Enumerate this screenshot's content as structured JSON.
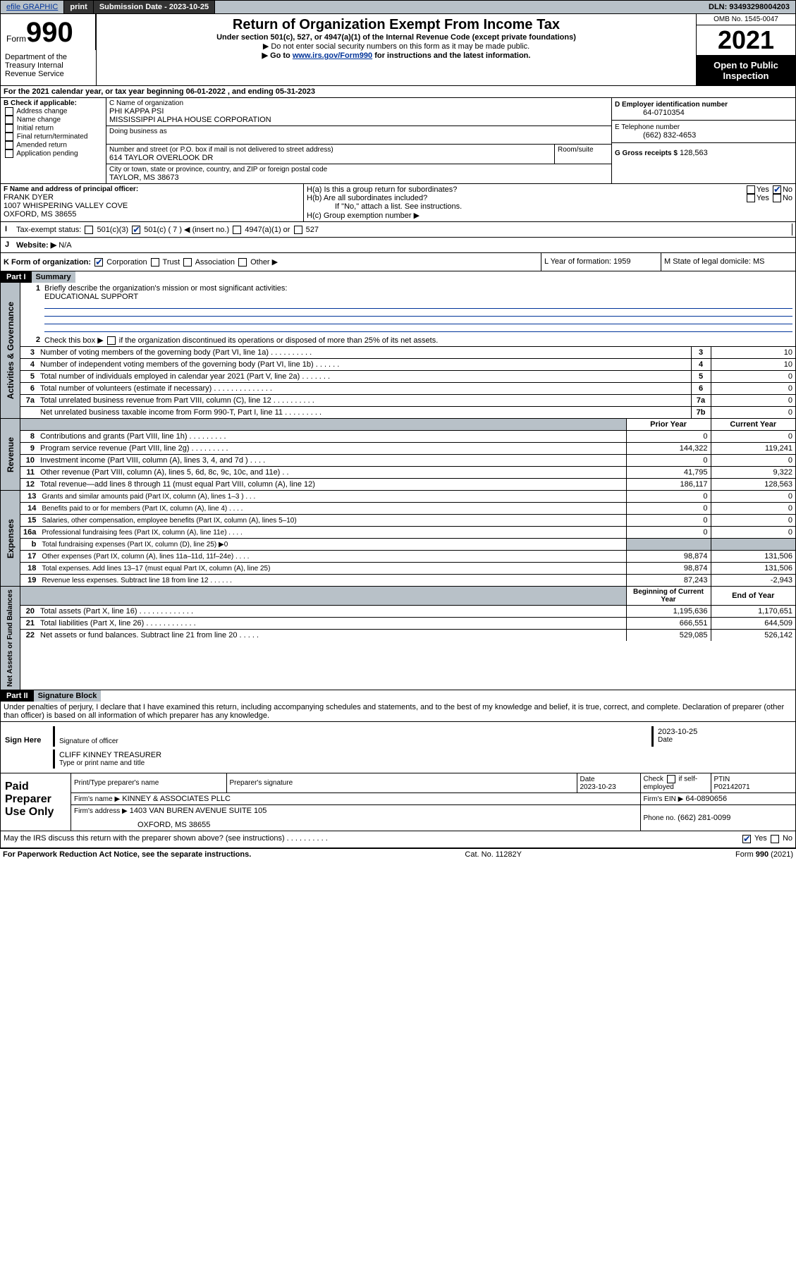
{
  "topbar": {
    "efile": "efile GRAPHIC",
    "print": "print",
    "sub_date_label": "Submission Date - 2023-10-25",
    "dln_label": "DLN: 93493298004203"
  },
  "header": {
    "form_prefix": "Form",
    "form_no": "990",
    "title": "Return of Organization Exempt From Income Tax",
    "subtitle": "Under section 501(c), 527, or 4947(a)(1) of the Internal Revenue Code (except private foundations)",
    "note1": "▶ Do not enter social security numbers on this form as it may be made public.",
    "note2_prefix": "▶ Go to ",
    "note2_link": "www.irs.gov/Form990",
    "note2_suffix": " for instructions and the latest information.",
    "omb": "OMB No. 1545-0047",
    "year": "2021",
    "open": "Open to Public Inspection",
    "dept": "Department of the Treasury Internal Revenue Service"
  },
  "sectionA": {
    "tax_year": "For the 2021 calendar year, or tax year beginning 06-01-2022   , and ending 05-31-2023",
    "b_label": "B Check if applicable:",
    "b_opts": [
      "Address change",
      "Name change",
      "Initial return",
      "Final return/terminated",
      "Amended return",
      "Application pending"
    ],
    "c_name_label": "C Name of organization",
    "c_name1": "PHI KAPPA PSI",
    "c_name2": "MISSISSIPPI ALPHA HOUSE CORPORATION",
    "dba_label": "Doing business as",
    "street_label": "Number and street (or P.O. box if mail is not delivered to street address)",
    "room_label": "Room/suite",
    "street": "614 TAYLOR OVERLOOK DR",
    "city_label": "City or town, state or province, country, and ZIP or foreign postal code",
    "city": "TAYLOR, MS  38673",
    "d_label": "D Employer identification number",
    "d_val": "64-0710354",
    "e_label": "E Telephone number",
    "e_val": "(662) 832-4653",
    "g_label": "G Gross receipts $",
    "g_val": "128,563",
    "f_label": "F  Name and address of principal officer:",
    "f_name": "FRANK DYER",
    "f_addr1": "1007 WHISPERING VALLEY COVE",
    "f_addr2": "OXFORD, MS  38655",
    "ha_label": "H(a)  Is this a group return for subordinates?",
    "hb_label": "H(b)  Are all subordinates included?",
    "h_note": "If \"No,\" attach a list. See instructions.",
    "hc_label": "H(c)  Group exemption number ▶",
    "yes": "Yes",
    "no": "No",
    "i_label": "Tax-exempt status:",
    "i_501c3": "501(c)(3)",
    "i_501c": "501(c) ( 7 ) ◀ (insert no.)",
    "i_4947": "4947(a)(1) or",
    "i_527": "527",
    "j_label": "Website: ▶",
    "j_val": "N/A",
    "k_label": "K Form of organization:",
    "k_opts": [
      "Corporation",
      "Trust",
      "Association",
      "Other ▶"
    ],
    "l_label": "L Year of formation: 1959",
    "m_label": "M State of legal domicile: MS"
  },
  "part1": {
    "header": "Part I",
    "title": "Summary",
    "q1": "Briefly describe the organization's mission or most significant activities:",
    "q1_ans": "EDUCATIONAL SUPPORT",
    "q2": "Check this box ▶      if the organization discontinued its operations or disposed of more than 25% of its net assets.",
    "lines_gov": [
      {
        "n": "3",
        "t": "Number of voting members of the governing body (Part VI, line 1a)   .    .    .    .    .    .    .    .    .    .",
        "box": "3",
        "v": "10"
      },
      {
        "n": "4",
        "t": "Number of independent voting members of the governing body (Part VI, line 1b)     .    .    .    .    .    .",
        "box": "4",
        "v": "10"
      },
      {
        "n": "5",
        "t": "Total number of individuals employed in calendar year 2021 (Part V, line 2a)    .    .    .    .    .    .    .",
        "box": "5",
        "v": "0"
      },
      {
        "n": "6",
        "t": "Total number of volunteers (estimate if necessary)   .    .    .    .    .    .    .    .    .    .    .    .    .    .",
        "box": "6",
        "v": "0"
      },
      {
        "n": "7a",
        "t": "Total unrelated business revenue from Part VIII, column (C), line 12   .    .    .    .    .    .    .    .    .    .",
        "box": "7a",
        "v": "0"
      },
      {
        "n": "",
        "t": "Net unrelated business taxable income from Form 990-T, Part I, line 11   .    .    .    .    .    .    .    .    .",
        "box": "7b",
        "v": "0"
      }
    ],
    "col_prior": "Prior Year",
    "col_curr": "Current Year",
    "b_label": "b",
    "rev": [
      {
        "n": "8",
        "t": "Contributions and grants (Part VIII, line 1h)   .    .    .    .    .    .    .    .    .",
        "p": "0",
        "c": "0"
      },
      {
        "n": "9",
        "t": "Program service revenue (Part VIII, line 2g)   .    .    .    .    .    .    .    .    .",
        "p": "144,322",
        "c": "119,241"
      },
      {
        "n": "10",
        "t": "Investment income (Part VIII, column (A), lines 3, 4, and 7d )    .    .    .    .",
        "p": "0",
        "c": "0"
      },
      {
        "n": "11",
        "t": "Other revenue (Part VIII, column (A), lines 5, 6d, 8c, 9c, 10c, and 11e)    .    .",
        "p": "41,795",
        "c": "9,322"
      },
      {
        "n": "12",
        "t": "Total revenue—add lines 8 through 11 (must equal Part VIII, column (A), line 12)",
        "p": "186,117",
        "c": "128,563"
      }
    ],
    "exp": [
      {
        "n": "13",
        "t": "Grants and similar amounts paid (Part IX, column (A), lines 1–3 )   .    .    .",
        "p": "0",
        "c": "0"
      },
      {
        "n": "14",
        "t": "Benefits paid to or for members (Part IX, column (A), line 4)   .    .    .    .",
        "p": "0",
        "c": "0"
      },
      {
        "n": "15",
        "t": "Salaries, other compensation, employee benefits (Part IX, column (A), lines 5–10)",
        "p": "0",
        "c": "0"
      },
      {
        "n": "16a",
        "t": "Professional fundraising fees (Part IX, column (A), line 11e)   .    .    .    .",
        "p": "0",
        "c": "0"
      },
      {
        "n": "b",
        "t": "Total fundraising expenses (Part IX, column (D), line 25) ▶0",
        "p": "",
        "c": "",
        "grey": true
      },
      {
        "n": "17",
        "t": "Other expenses (Part IX, column (A), lines 11a–11d, 11f–24e)   .    .    .    .",
        "p": "98,874",
        "c": "131,506"
      },
      {
        "n": "18",
        "t": "Total expenses. Add lines 13–17 (must equal Part IX, column (A), line 25)",
        "p": "98,874",
        "c": "131,506"
      },
      {
        "n": "19",
        "t": "Revenue less expenses. Subtract line 18 from line 12   .    .    .    .    .    .",
        "p": "87,243",
        "c": "-2,943"
      }
    ],
    "col_beg": "Beginning of Current Year",
    "col_end": "End of Year",
    "net": [
      {
        "n": "20",
        "t": "Total assets (Part X, line 16)   .    .    .    .    .    .    .    .    .    .    .    .    .",
        "p": "1,195,636",
        "c": "1,170,651"
      },
      {
        "n": "21",
        "t": "Total liabilities (Part X, line 26)    .    .    .    .    .    .    .    .    .    .    .    .",
        "p": "666,551",
        "c": "644,509"
      },
      {
        "n": "22",
        "t": "Net assets or fund balances. Subtract line 21 from line 20   .    .    .    .    .",
        "p": "529,085",
        "c": "526,142"
      }
    ],
    "side_gov": "Activities & Governance",
    "side_rev": "Revenue",
    "side_exp": "Expenses",
    "side_net": "Net Assets or Fund Balances"
  },
  "part2": {
    "header": "Part II",
    "title": "Signature Block",
    "decl": "Under penalties of perjury, I declare that I have examined this return, including accompanying schedules and statements, and to the best of my knowledge and belief, it is true, correct, and complete. Declaration of preparer (other than officer) is based on all information of which preparer has any knowledge.",
    "sign_here": "Sign Here",
    "sig_officer": "Signature of officer",
    "date_label": "Date",
    "sig_date": "2023-10-25",
    "officer_name": "CLIFF KINNEY TREASURER",
    "type_name": "Type or print name and title",
    "paid": "Paid Preparer Use Only",
    "prep_name_label": "Print/Type preparer's name",
    "prep_sig_label": "Preparer's signature",
    "prep_date_label": "Date",
    "prep_date": "2023-10-23",
    "check_if": "Check        if self-employed",
    "ptin_label": "PTIN",
    "ptin": "P02142071",
    "firm_name_label": "Firm's name      ▶",
    "firm_name": "KINNEY & ASSOCIATES PLLC",
    "firm_ein_label": "Firm's EIN ▶",
    "firm_ein": "64-0890656",
    "firm_addr_label": "Firm's address ▶",
    "firm_addr1": "1403 VAN BUREN AVENUE SUITE 105",
    "firm_addr2": "OXFORD, MS  38655",
    "phone_label": "Phone no.",
    "phone": "(662) 281-0099",
    "may_irs": "May the IRS discuss this return with the preparer shown above? (see instructions)    .    .    .    .    .    .    .    .    .    .",
    "paperwork": "For Paperwork Reduction Act Notice, see the separate instructions.",
    "catno": "Cat. No. 11282Y",
    "formfoot": "Form 990 (2021)"
  }
}
